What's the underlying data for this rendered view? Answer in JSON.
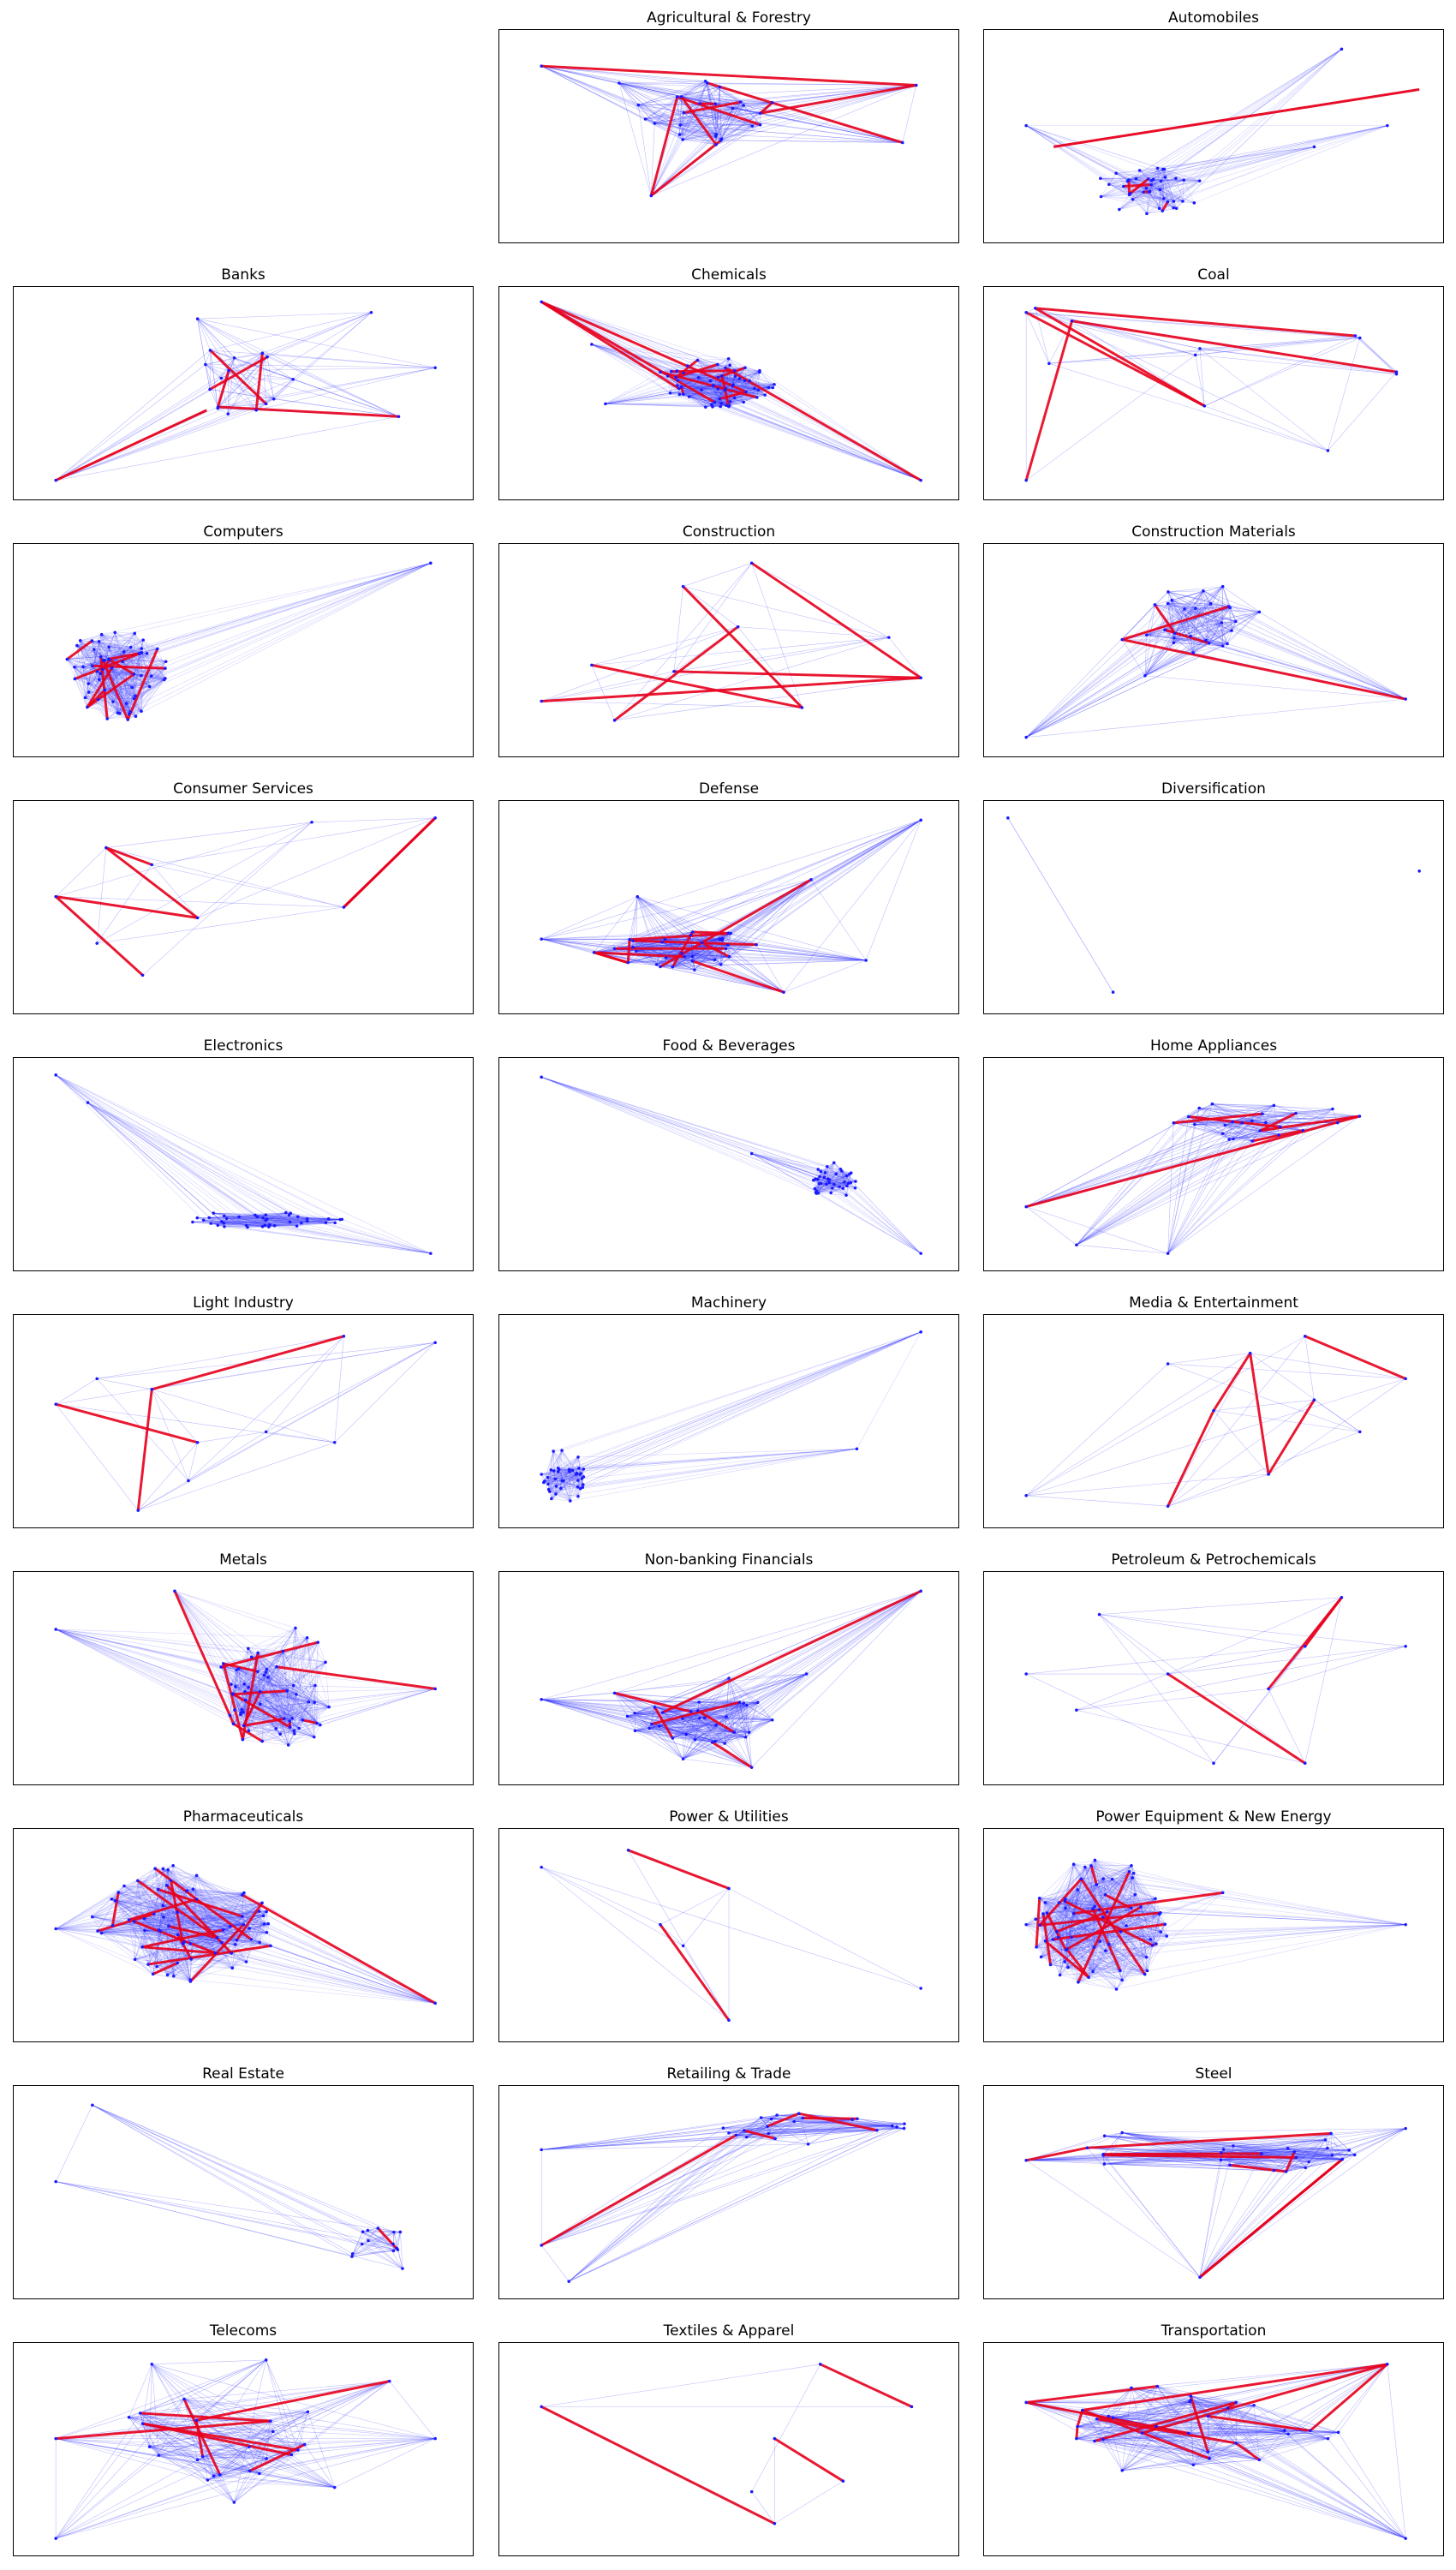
{
  "figure": {
    "panels": [
      {
        "title": "",
        "empty": true
      },
      {
        "title": "Agricultural & Forestry"
      },
      {
        "title": "Automobiles"
      },
      {
        "title": "Banks"
      },
      {
        "title": "Chemicals"
      },
      {
        "title": "Coal"
      },
      {
        "title": "Computers"
      },
      {
        "title": "Construction"
      },
      {
        "title": "Construction Materials"
      },
      {
        "title": "Consumer Services"
      },
      {
        "title": "Defense"
      },
      {
        "title": "Diversification"
      },
      {
        "title": "Electronics"
      },
      {
        "title": "Food & Beverages"
      },
      {
        "title": "Home Appliances"
      },
      {
        "title": "Light Industry"
      },
      {
        "title": "Machinery"
      },
      {
        "title": "Media & Entertainment"
      },
      {
        "title": "Metals"
      },
      {
        "title": "Non-banking Financials"
      },
      {
        "title": "Petroleum & Petrochemicals"
      },
      {
        "title": "Pharmaceuticals"
      },
      {
        "title": "Power & Utilities"
      },
      {
        "title": "Power Equipment & New Energy"
      },
      {
        "title": "Real Estate"
      },
      {
        "title": "Retailing & Trade"
      },
      {
        "title": "Steel"
      },
      {
        "title": "Telecoms"
      },
      {
        "title": "Textiles & Apparel"
      },
      {
        "title": "Transportation"
      }
    ],
    "colors": {
      "edge_weak": "#3333ff",
      "edge_strong": "#e8001c",
      "node": "#1a1aff",
      "frame": "#000000"
    }
  }
}
